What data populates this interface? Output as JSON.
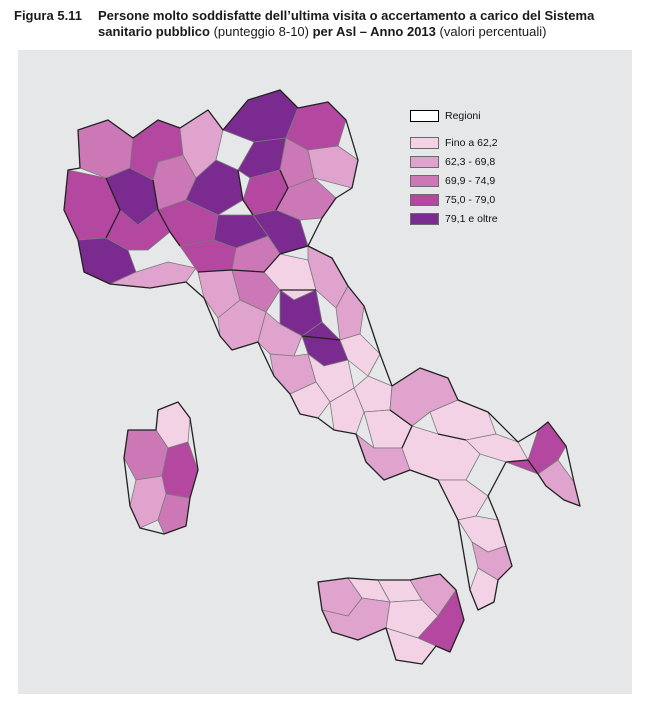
{
  "figure": {
    "number": "Figura 5.11",
    "title_bold_1": "Persone molto soddisfatte dell’ultima visita o accertamento a carico del Sistema sanitario pubblico",
    "title_normal_1": " (punteggio 8-10) ",
    "title_bold_2": "per Asl – Anno 2013",
    "title_normal_2": " (valori percentuali)"
  },
  "legend": {
    "boundary_label": "Regioni",
    "classes": [
      {
        "label": "Fino a 62,2",
        "color": "#f4d2e6"
      },
      {
        "label": "62,3 - 69,8",
        "color": "#e0a3cd"
      },
      {
        "label": "69,9 - 74,9",
        "color": "#cc78b7"
      },
      {
        "label": "75,0 - 79,0",
        "color": "#b4479f"
      },
      {
        "label": "79,1 e oltre",
        "color": "#7b2a8f"
      }
    ]
  },
  "colors": {
    "background": "#e6e7e9",
    "asl_border": "#7a7a7a",
    "region_border": "#222222"
  }
}
